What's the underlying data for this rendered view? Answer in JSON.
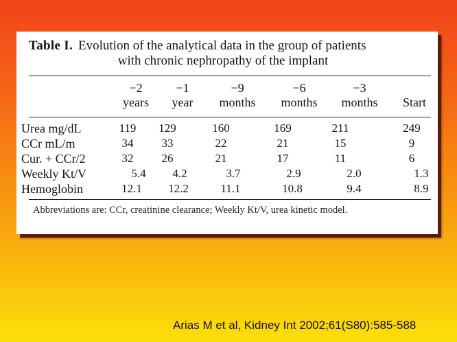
{
  "table": {
    "label": "Table I.",
    "title_line1": "Evolution of the analytical data in the group of patients",
    "title_line2": "with chronic nephropathy of the implant",
    "columns": [
      {
        "top": "−2",
        "bottom": "years"
      },
      {
        "top": "−1",
        "bottom": "year"
      },
      {
        "top": "−9",
        "bottom": "months"
      },
      {
        "top": "−6",
        "bottom": "months"
      },
      {
        "top": "−3",
        "bottom": "months"
      },
      {
        "top": "",
        "bottom": "Start"
      }
    ],
    "rows": [
      {
        "label": "Urea mg/dL",
        "values": [
          "119",
          "129",
          "160",
          "169",
          "211",
          "249"
        ]
      },
      {
        "label": "CCr mL/m",
        "values": [
          "34",
          "33",
          "22",
          "21",
          "15",
          "9"
        ]
      },
      {
        "label": "Cur. + CCr/2",
        "values": [
          "32",
          "26",
          "21",
          "17",
          "11",
          "6"
        ]
      },
      {
        "label": "Weekly Kt/V",
        "values": [
          "5.4",
          "4.2",
          "3.7",
          "2.9",
          "2.0",
          "1.3"
        ]
      },
      {
        "label": "Hemoglobin",
        "values": [
          "12.1",
          "12.2",
          "11.1",
          "10.8",
          "9.4",
          "8.9"
        ]
      }
    ],
    "footnote": "Abbreviations are: CCr, creatinine clearance; Weekly Kt/V, urea kinetic model."
  },
  "citation": "Arias M et al, Kidney Int 2002;61(S80):585-588"
}
